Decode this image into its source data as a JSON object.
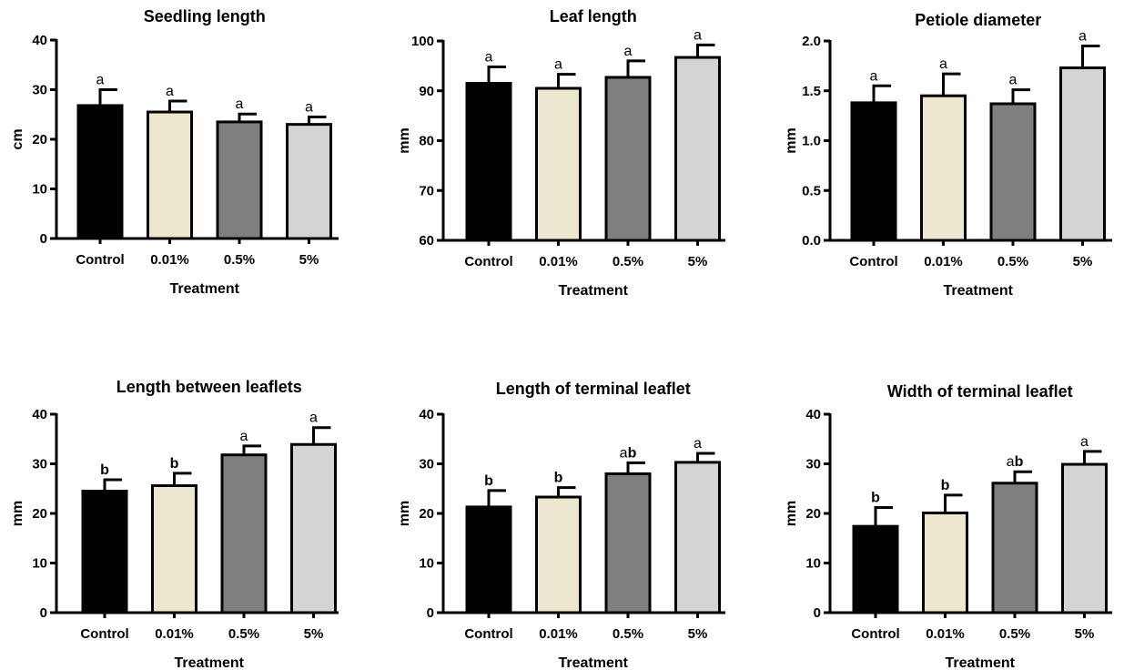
{
  "chart_data": [
    {
      "type": "bar",
      "title": "Seedling length",
      "xlabel": "Treatment",
      "ylabel": "cm",
      "categories": [
        "Control",
        "0.01%",
        "0.5%",
        "5%"
      ],
      "values": [
        26.8,
        25.5,
        23.5,
        23.0
      ],
      "errors": [
        3.2,
        2.2,
        1.6,
        1.5
      ],
      "significance": [
        "a",
        "a",
        "a",
        "a"
      ],
      "significance_bold": [
        false,
        false,
        false,
        false
      ],
      "ylim": [
        0,
        40
      ],
      "yticks": [
        0,
        10,
        20,
        30,
        40
      ],
      "ytick_labels": [
        "0",
        "10",
        "20",
        "30",
        "40"
      ],
      "bar_colors": [
        "#000000",
        "#ede7cf",
        "#7f7f7f",
        "#d4d4d4"
      ],
      "grid": false
    },
    {
      "type": "bar",
      "title": "Leaf length",
      "xlabel": "Treatment",
      "ylabel": "mm",
      "categories": [
        "Control",
        "0.01%",
        "0.5%",
        "5%"
      ],
      "values": [
        91.5,
        90.5,
        92.7,
        96.7
      ],
      "errors": [
        3.3,
        2.8,
        3.3,
        2.5
      ],
      "significance": [
        "a",
        "a",
        "a",
        "a"
      ],
      "significance_bold": [
        false,
        false,
        false,
        false
      ],
      "ylim": [
        60,
        100
      ],
      "yticks": [
        60,
        70,
        80,
        90,
        100
      ],
      "ytick_labels": [
        "60",
        "70",
        "80",
        "90",
        "100"
      ],
      "bar_colors": [
        "#000000",
        "#ede7cf",
        "#7f7f7f",
        "#d4d4d4"
      ],
      "grid": false
    },
    {
      "type": "bar",
      "title": "Petiole diameter",
      "xlabel": "Treatment",
      "ylabel": "mm",
      "categories": [
        "Control",
        "0.01%",
        "0.5%",
        "5%"
      ],
      "values": [
        1.38,
        1.45,
        1.37,
        1.73
      ],
      "errors": [
        0.17,
        0.22,
        0.14,
        0.22
      ],
      "significance": [
        "a",
        "a",
        "a",
        "a"
      ],
      "significance_bold": [
        false,
        false,
        false,
        false
      ],
      "ylim": [
        0,
        2.0
      ],
      "yticks": [
        0,
        0.5,
        1.0,
        1.5,
        2.0
      ],
      "ytick_labels": [
        "0.0",
        "0.5",
        "1.0",
        "1.5",
        "2.0"
      ],
      "bar_colors": [
        "#000000",
        "#ede7cf",
        "#7f7f7f",
        "#d4d4d4"
      ],
      "grid": false
    },
    {
      "type": "bar",
      "title": "Length between leaflets",
      "xlabel": "Treatment",
      "ylabel": "mm",
      "categories": [
        "Control",
        "0.01%",
        "0.5%",
        "5%"
      ],
      "values": [
        24.5,
        25.6,
        31.8,
        33.9
      ],
      "errors": [
        2.3,
        2.5,
        1.8,
        3.4
      ],
      "significance": [
        "b",
        "b",
        "a",
        "a"
      ],
      "significance_bold": [
        true,
        true,
        false,
        false
      ],
      "ylim": [
        0,
        40
      ],
      "yticks": [
        0,
        10,
        20,
        30,
        40
      ],
      "ytick_labels": [
        "0",
        "10",
        "20",
        "30",
        "40"
      ],
      "bar_colors": [
        "#000000",
        "#ede7cf",
        "#7f7f7f",
        "#d4d4d4"
      ],
      "grid": false
    },
    {
      "type": "bar",
      "title": "Length of terminal leaflet",
      "xlabel": "Treatment",
      "ylabel": "mm",
      "categories": [
        "Control",
        "0.01%",
        "0.5%",
        "5%"
      ],
      "values": [
        21.3,
        23.3,
        28.0,
        30.3
      ],
      "errors": [
        3.3,
        1.9,
        2.2,
        1.8
      ],
      "significance": [
        "b",
        "b",
        "ab",
        "a"
      ],
      "significance_bold": [
        true,
        true,
        false,
        false
      ],
      "ylim": [
        0,
        40
      ],
      "yticks": [
        0,
        10,
        20,
        30,
        40
      ],
      "ytick_labels": [
        "0",
        "10",
        "20",
        "30",
        "40"
      ],
      "bar_colors": [
        "#000000",
        "#ede7cf",
        "#7f7f7f",
        "#d4d4d4"
      ],
      "grid": false
    },
    {
      "type": "bar",
      "title": "Width of terminal leaflet",
      "xlabel": "Treatment",
      "ylabel": "mm",
      "categories": [
        "Control",
        "0.01%",
        "0.5%",
        "5%"
      ],
      "values": [
        17.4,
        20.1,
        26.1,
        29.9
      ],
      "errors": [
        3.8,
        3.6,
        2.3,
        2.6
      ],
      "significance": [
        "b",
        "b",
        "ab",
        "a"
      ],
      "significance_bold": [
        true,
        true,
        false,
        false
      ],
      "ylim": [
        0,
        40
      ],
      "yticks": [
        0,
        10,
        20,
        30,
        40
      ],
      "ytick_labels": [
        "0",
        "10",
        "20",
        "30",
        "40"
      ],
      "bar_colors": [
        "#000000",
        "#ede7cf",
        "#7f7f7f",
        "#d4d4d4"
      ],
      "grid": false
    }
  ]
}
